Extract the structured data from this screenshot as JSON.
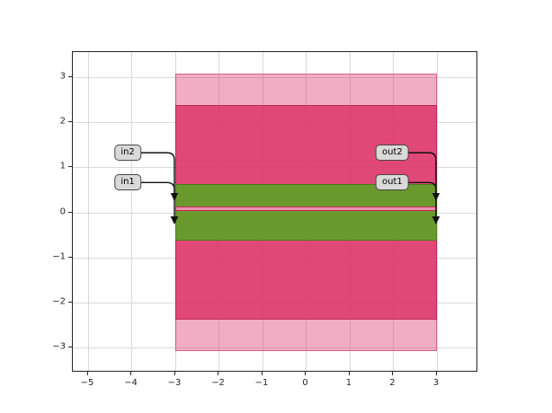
{
  "chart_data": {
    "type": "area",
    "title": "",
    "xlabel": "",
    "ylabel": "",
    "xlim": [
      -5.35,
      3.95
    ],
    "ylim": [
      -3.55,
      3.55
    ],
    "grid": true,
    "legend": null,
    "xticks": [
      -5,
      -4,
      -3,
      -2,
      -1,
      0,
      1,
      2,
      3
    ],
    "xtick_labels": [
      "−5",
      "−4",
      "−3",
      "−2",
      "−1",
      "0",
      "1",
      "2",
      "3"
    ],
    "yticks": [
      -3,
      -2,
      -1,
      0,
      1,
      2,
      3
    ],
    "ytick_labels": [
      "−3",
      "−2",
      "−1",
      "0",
      "1",
      "2",
      "3"
    ],
    "bands": [
      {
        "name": "outer-light-pink",
        "x": [
          -3,
          3
        ],
        "y": [
          -3.08,
          3.08
        ],
        "color": "rgba(222,73,124,0.45)",
        "edge": "rgba(200,55,105,0.65)"
      },
      {
        "name": "mid-pink",
        "x": [
          -3,
          3
        ],
        "y": [
          -2.37,
          2.37
        ],
        "color": "rgba(219,44,98,0.78)",
        "edge": "rgba(185,32,82,0.85)"
      },
      {
        "name": "green",
        "x": [
          -3,
          3
        ],
        "y": [
          -0.63,
          0.63
        ],
        "color": "rgba(96,161,39,0.92)",
        "edge": "rgba(70,128,28,0.95)"
      },
      {
        "name": "thin-pink-stripe",
        "x": [
          -3,
          3
        ],
        "y": [
          0.03,
          0.13
        ],
        "color": "rgba(238,143,176,1)",
        "edge": "rgba(185,32,82,0.9)"
      }
    ],
    "annotations": [
      {
        "label": "in2",
        "box_center": [
          -4.07,
          1.3
        ],
        "arrow_tip": [
          -3,
          -0.36
        ]
      },
      {
        "label": "in1",
        "box_center": [
          -4.07,
          0.64
        ],
        "arrow_tip": [
          -3,
          0.16
        ]
      },
      {
        "label": "out2",
        "box_center": [
          2.0,
          1.3
        ],
        "arrow_tip": [
          3,
          -0.36
        ]
      },
      {
        "label": "out1",
        "box_center": [
          2.0,
          0.64
        ],
        "arrow_tip": [
          3,
          0.16
        ]
      }
    ]
  },
  "style": {
    "annotation_fill": "#d9d9d9",
    "annotation_border": "#474747",
    "arrow_color": "#111111",
    "grid_color": "#d9d9d9",
    "spine_color": "#262626",
    "tick_label_color": "#262626",
    "background": "#ffffff"
  }
}
